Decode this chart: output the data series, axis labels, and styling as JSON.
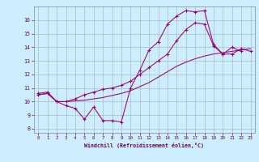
{
  "xlabel": "Windchill (Refroidissement éolien,°C)",
  "background_color": "#cceeff",
  "grid_color": "#aabbcc",
  "line_color": "#990077",
  "x_ticks": [
    0,
    1,
    2,
    3,
    4,
    5,
    6,
    7,
    8,
    9,
    10,
    11,
    12,
    13,
    14,
    15,
    16,
    17,
    18,
    19,
    20,
    21,
    22,
    23
  ],
  "y_ticks": [
    8,
    9,
    10,
    11,
    12,
    13,
    14,
    15,
    16
  ],
  "xlim": [
    -0.5,
    23.5
  ],
  "ylim": [
    7.7,
    17.0
  ],
  "line1_x": [
    0,
    1,
    2,
    3,
    4,
    5,
    6,
    7,
    8,
    9,
    10,
    11,
    12,
    13,
    14,
    15,
    16,
    17,
    18,
    19,
    20,
    21,
    22
  ],
  "line1_y": [
    10.6,
    10.7,
    10.0,
    9.7,
    9.5,
    8.7,
    9.6,
    8.6,
    8.6,
    8.5,
    11.0,
    12.3,
    13.8,
    14.4,
    15.7,
    16.3,
    16.7,
    16.6,
    16.7,
    14.2,
    13.5,
    14.0,
    13.7
  ],
  "line2_x": [
    0,
    1,
    2,
    3,
    4,
    5,
    6,
    7,
    8,
    9,
    10,
    11,
    12,
    13,
    14,
    15,
    16,
    17,
    18,
    19,
    20,
    21,
    22,
    23
  ],
  "line2_y": [
    10.5,
    10.6,
    10.0,
    10.0,
    10.05,
    10.1,
    10.2,
    10.3,
    10.45,
    10.6,
    10.8,
    11.1,
    11.4,
    11.8,
    12.2,
    12.6,
    12.9,
    13.15,
    13.35,
    13.5,
    13.6,
    13.7,
    13.8,
    13.9
  ],
  "line3_x": [
    0,
    1,
    2,
    3,
    4,
    5,
    6,
    7,
    8,
    9,
    10,
    11,
    12,
    13,
    14,
    15,
    16,
    17,
    18,
    19,
    20,
    21,
    22,
    23
  ],
  "line3_y": [
    10.5,
    10.6,
    10.0,
    10.0,
    10.2,
    10.5,
    10.7,
    10.9,
    11.0,
    11.2,
    11.5,
    12.0,
    12.5,
    13.0,
    13.5,
    14.5,
    15.3,
    15.8,
    15.7,
    14.1,
    13.5,
    13.5,
    13.9,
    13.7
  ]
}
